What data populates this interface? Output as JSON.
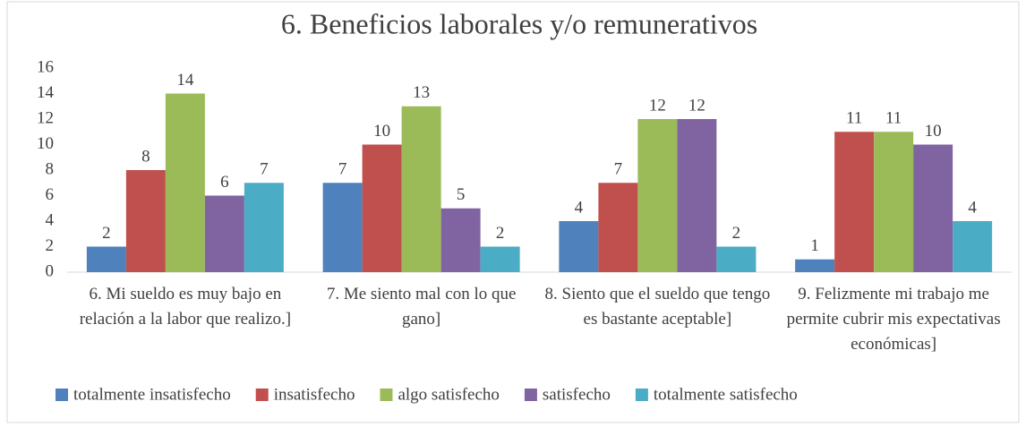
{
  "chart_data": {
    "type": "bar",
    "title": "6. Beneficios laborales y/o remunerativos",
    "categories": [
      "6. Mi sueldo es muy bajo en relación a la labor que realizo.]",
      "7. Me siento mal con lo que gano]",
      "8. Siento que el sueldo que tengo es bastante aceptable]",
      "9. Felizmente mi trabajo me permite cubrir mis expectativas económicas]"
    ],
    "series": [
      {
        "name": "totalmente insatisfecho",
        "color": "#4f81bd",
        "values": [
          2,
          7,
          4,
          1
        ]
      },
      {
        "name": "insatisfecho",
        "color": "#c0504d",
        "values": [
          8,
          10,
          7,
          11
        ]
      },
      {
        "name": "algo satisfecho",
        "color": "#9bbb59",
        "values": [
          14,
          13,
          12,
          11
        ]
      },
      {
        "name": "satisfecho",
        "color": "#8064a2",
        "values": [
          6,
          5,
          12,
          10
        ]
      },
      {
        "name": "totalmente satisfecho",
        "color": "#4bacc6",
        "values": [
          7,
          2,
          2,
          4
        ]
      }
    ],
    "ylim": [
      0,
      16
    ],
    "yticks": [
      0,
      2,
      4,
      6,
      8,
      10,
      12,
      14,
      16
    ],
    "grid": false,
    "legend": "bottom"
  }
}
